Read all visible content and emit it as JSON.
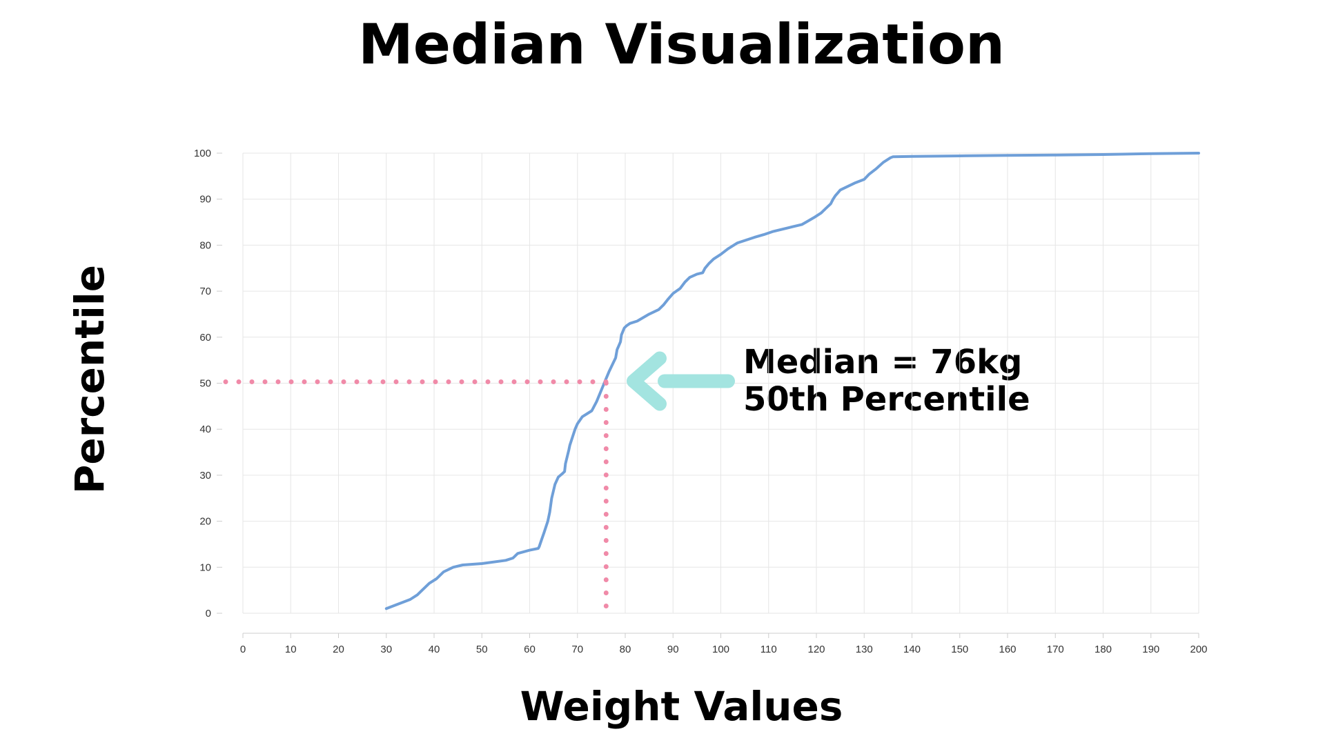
{
  "chart_data": {
    "type": "line",
    "title": "Median Visualization",
    "xlabel": "Weight Values",
    "ylabel": "Percentile",
    "xlim": [
      0,
      200
    ],
    "ylim": [
      0,
      100
    ],
    "x_ticks": [
      0,
      10,
      20,
      30,
      40,
      50,
      60,
      70,
      80,
      90,
      100,
      110,
      120,
      130,
      140,
      150,
      160,
      170,
      180,
      190,
      200
    ],
    "y_ticks": [
      0,
      10,
      20,
      30,
      40,
      50,
      60,
      70,
      80,
      90,
      100
    ],
    "grid": true,
    "line_color": "#6f9fd8",
    "guide_color": "#f08aa8",
    "arrow_color": "#a3e4e0",
    "series": [
      {
        "x": [
          30,
          35,
          36.5,
          37.5,
          39,
          40.5,
          42,
          44,
          46,
          50,
          55,
          56.5,
          57.5,
          60,
          61.8,
          62,
          62.5,
          63,
          63.8,
          64.2,
          64.6,
          65.3,
          66,
          66.8,
          67.3,
          67.5,
          68.2,
          68.4,
          69.5,
          70,
          71,
          73,
          74,
          75,
          76,
          76.6,
          77.3,
          78,
          78.3,
          78.6,
          79,
          79.2,
          79.8,
          80.3,
          81,
          82.5,
          85,
          87,
          88,
          89,
          90,
          91.5,
          92.5,
          93.5,
          95,
          96.2,
          96.7,
          97.5,
          98.5,
          100,
          101.5,
          103.5,
          107,
          109,
          111,
          115,
          117,
          118,
          119.5,
          121,
          122,
          123,
          123.5,
          124,
          124.5,
          125,
          126.2,
          128,
          130,
          131,
          132.5,
          134,
          135.5,
          136,
          140,
          150,
          160,
          170,
          180,
          190,
          200
        ],
        "y": [
          1,
          3,
          4,
          5,
          6.5,
          7.5,
          9,
          10,
          10.5,
          10.8,
          11.5,
          12,
          13,
          13.7,
          14.1,
          14.5,
          16,
          17.5,
          20,
          22,
          25,
          28,
          29.6,
          30.3,
          30.8,
          32.5,
          35.5,
          36.5,
          40,
          41.2,
          42.7,
          44,
          46,
          48.5,
          51,
          52.5,
          54,
          55.5,
          57.3,
          58,
          59,
          60.5,
          62,
          62.5,
          63,
          63.5,
          65,
          66,
          67,
          68.3,
          69.5,
          70.6,
          72,
          73,
          73.7,
          74,
          75,
          76,
          77,
          78,
          79.2,
          80.5,
          81.7,
          82.3,
          83,
          84,
          84.5,
          85.1,
          86,
          87,
          88,
          89,
          90,
          90.8,
          91.4,
          92,
          92.6,
          93.5,
          94.3,
          95.4,
          96.6,
          98,
          99,
          99.2,
          99.3,
          99.4,
          99.5,
          99.6,
          99.7,
          99.9,
          100
        ]
      }
    ],
    "annotations": [
      {
        "lines": [
          "Median = 76kg",
          "50th Percentile"
        ],
        "x": 76,
        "y": 50
      }
    ]
  }
}
